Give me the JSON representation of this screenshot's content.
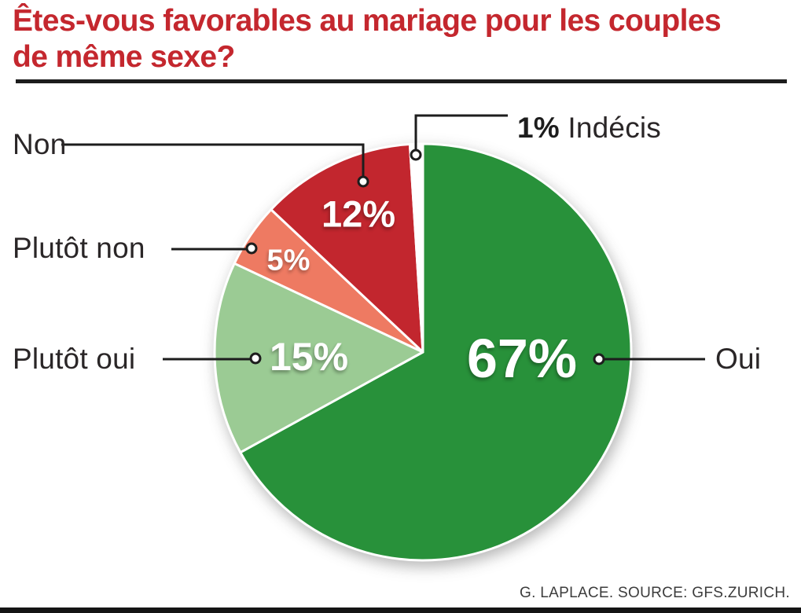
{
  "header": {
    "title_line1": "Êtes-vous favorables au mariage pour les couples",
    "title_line2": "de même sexe?"
  },
  "chart_data": {
    "type": "pie",
    "title": "Êtes-vous favorables au mariage pour les couples de même sexe?",
    "categories": [
      "Oui",
      "Plutôt oui",
      "Plutôt non",
      "Non",
      "Indécis"
    ],
    "values": [
      67,
      15,
      5,
      12,
      1
    ],
    "unit": "%",
    "display_values": [
      "67%",
      "15%",
      "5%",
      "12%",
      "1%"
    ],
    "colors": [
      "#28913a",
      "#9bcb94",
      "#ee7a62",
      "#c2262e",
      "#ffffff"
    ],
    "start_angle_deg": 0,
    "direction": "clockwise",
    "legend_position": "callout-labels-around-pie"
  },
  "footer": {
    "source": "G. LAPLACE. SOURCE: GFS.ZURICH."
  },
  "style_colors": {
    "title_red": "#c4272e",
    "label_dark": "#2a2627",
    "rule_black": "#1c1c1c"
  }
}
